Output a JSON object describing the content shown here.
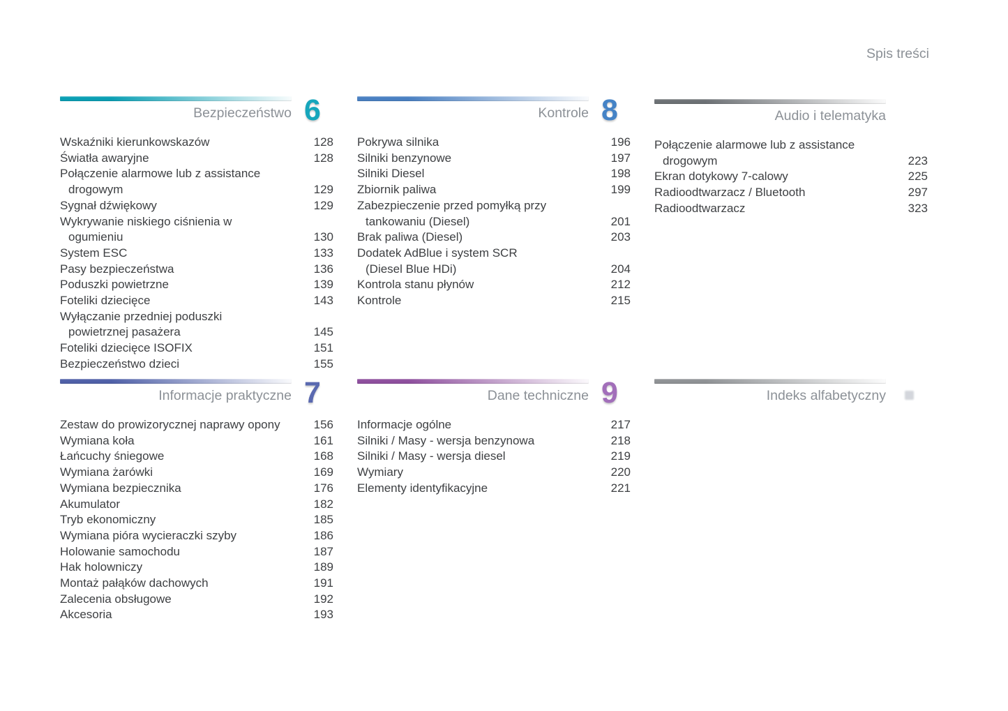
{
  "page_title": "Spis treści",
  "sections": [
    {
      "id": "bezpieczenstwo",
      "title": "Bezpieczeństwo",
      "number": "6",
      "accent": "#17a6bc",
      "bar_color": "#0b9fb4",
      "entries": [
        {
          "label": "Wskaźniki kierunkowskazów",
          "page": "128"
        },
        {
          "label": "Światła awaryjne",
          "page": "128"
        },
        {
          "label": "Połączenie alarmowe lub z assistance",
          "label2": "drogowym",
          "page": "129"
        },
        {
          "label": "Sygnał dźwiękowy",
          "page": "129"
        },
        {
          "label": "Wykrywanie niskiego ciśnienia w",
          "label2": "ogumieniu",
          "page": "130"
        },
        {
          "label": "System ESC",
          "page": "133"
        },
        {
          "label": "Pasy bezpieczeństwa",
          "page": "136"
        },
        {
          "label": "Poduszki powietrzne",
          "page": "139"
        },
        {
          "label": "Foteliki dziecięce",
          "page": "143"
        },
        {
          "label": "Wyłączanie przedniej poduszki",
          "label2": "powietrznej pasażera",
          "page": "145"
        },
        {
          "label": "Foteliki dziecięce ISOFIX",
          "page": "151"
        },
        {
          "label": "Bezpieczeństwo dzieci",
          "page": "155"
        }
      ]
    },
    {
      "id": "kontrole",
      "title": "Kontrole",
      "number": "8",
      "accent": "#4583c6",
      "bar_color": "#4a80c2",
      "entries": [
        {
          "label": "Pokrywa silnika",
          "page": "196"
        },
        {
          "label": "Silniki benzynowe",
          "page": "197"
        },
        {
          "label": "Silniki Diesel",
          "page": "198"
        },
        {
          "label": "Zbiornik paliwa",
          "page": "199"
        },
        {
          "label": "Zabezpieczenie przed pomyłką przy",
          "label2": "tankowaniu (Diesel)",
          "page": "201"
        },
        {
          "label": "Brak paliwa (Diesel)",
          "page": "203"
        },
        {
          "label": "Dodatek AdBlue i system SCR",
          "label2": "(Diesel Blue HDi)",
          "page": "204"
        },
        {
          "label": "Kontrola stanu płynów",
          "page": "212"
        },
        {
          "label": "Kontrole",
          "page": "215"
        }
      ]
    },
    {
      "id": "audio-i-telematyka",
      "title": "Audio i telematyka",
      "number": "",
      "accent": "#6d7175",
      "bar_color": "#6d7175",
      "entries": [
        {
          "label": "Połączenie alarmowe lub z assistance",
          "label2": "drogowym",
          "page": "223"
        },
        {
          "label": "Ekran dotykowy 7-calowy",
          "page": "225"
        },
        {
          "label": "Radioodtwarzacz / Bluetooth",
          "page": "297"
        },
        {
          "label": "Radioodtwarzacz",
          "page": "323"
        }
      ]
    },
    {
      "id": "informacje-praktyczne",
      "title": "Informacje praktyczne",
      "number": "7",
      "accent": "#5a69b0",
      "bar_color": "#4f60a8",
      "entries": [
        {
          "label": "Zestaw do prowizorycznej naprawy opony",
          "page": "156"
        },
        {
          "label": "Wymiana koła",
          "page": "161"
        },
        {
          "label": "Łańcuchy śniegowe",
          "page": "168"
        },
        {
          "label": "Wymiana żarówki",
          "page": "169"
        },
        {
          "label": "Wymiana bezpiecznika",
          "page": "176"
        },
        {
          "label": "Akumulator",
          "page": "182"
        },
        {
          "label": "Tryb ekonomiczny",
          "page": "185"
        },
        {
          "label": "Wymiana pióra wycieraczki szyby",
          "page": "186"
        },
        {
          "label": "Holowanie samochodu",
          "page": "187"
        },
        {
          "label": "Hak holowniczy",
          "page": "189"
        },
        {
          "label": "Montaż pałąków dachowych",
          "page": "191"
        },
        {
          "label": "Zalecenia obsługowe",
          "page": "192"
        },
        {
          "label": "Akcesoria",
          "page": "193"
        }
      ]
    },
    {
      "id": "dane-techniczne",
      "title": "Dane techniczne",
      "number": "9",
      "accent": "#a26fba",
      "bar_color": "#8e4f9e",
      "entries": [
        {
          "label": "Informacje ogólne",
          "page": "217"
        },
        {
          "label": "Silniki / Masy - wersja benzynowa",
          "page": "218"
        },
        {
          "label": "Silniki / Masy - wersja diesel",
          "page": "219"
        },
        {
          "label": "Wymiary",
          "page": "220"
        },
        {
          "label": "Elementy identyfikacyjne",
          "page": "221"
        }
      ]
    },
    {
      "id": "indeks-alfabetyczny",
      "title": "Indeks alfabetyczny",
      "number": "",
      "accent": "#8f9295",
      "bar_color": "#8f9295",
      "entries": []
    }
  ]
}
